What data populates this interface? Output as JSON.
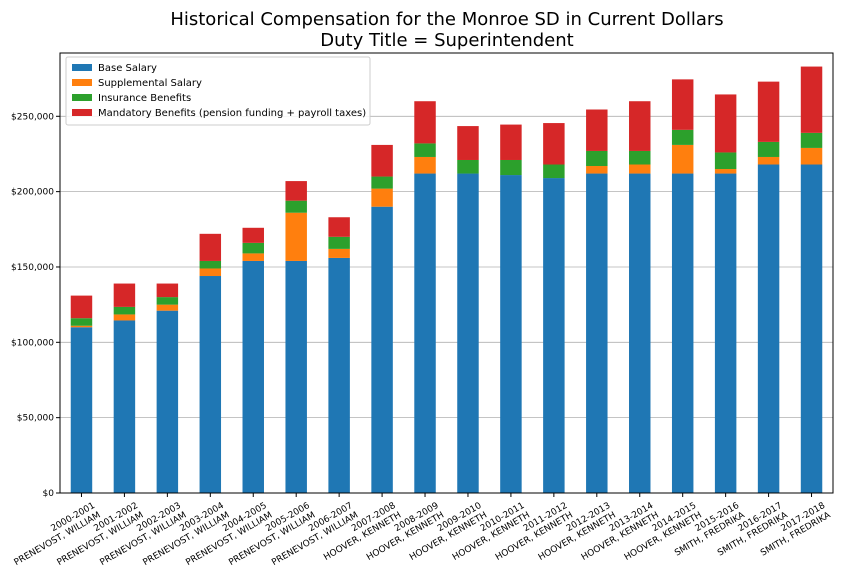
{
  "chart_data": {
    "type": "bar",
    "stacked": true,
    "title": "Historical Compensation for the Monroe SD in Current Dollars",
    "subtitle": "Duty Title = Superintendent",
    "xlabel": "",
    "ylabel": "",
    "ylim": [
      0,
      292000
    ],
    "y_ticks": [
      0,
      50000,
      100000,
      150000,
      200000,
      250000
    ],
    "y_tick_labels": [
      "$0",
      "$50,000",
      "$100,000",
      "$150,000",
      "$200,000",
      "$250,000"
    ],
    "grid": "horizontal",
    "legend_position": "top-left",
    "categories": [
      [
        "2000-2001",
        "PRENEVOST, WILLIAM"
      ],
      [
        "2001-2002",
        "PRENEVOST, WILLIAM"
      ],
      [
        "2002-2003",
        "PRENEVOST, WILLIAM"
      ],
      [
        "2003-2004",
        "PRENEVOST, WILLIAM"
      ],
      [
        "2004-2005",
        "PRENEVOST, WILLIAM"
      ],
      [
        "2005-2006",
        "PRENEVOST, WILLIAM"
      ],
      [
        "2006-2007",
        "PRENEVOST, WILLIAM"
      ],
      [
        "2007-2008",
        "HOOVER, KENNETH"
      ],
      [
        "2008-2009",
        "HOOVER, KENNETH"
      ],
      [
        "2009-2010",
        "HOOVER, KENNETH"
      ],
      [
        "2010-2011",
        "HOOVER, KENNETH"
      ],
      [
        "2011-2012",
        "HOOVER, KENNETH"
      ],
      [
        "2012-2013",
        "HOOVER, KENNETH"
      ],
      [
        "2013-2014",
        "HOOVER, KENNETH"
      ],
      [
        "2014-2015",
        "HOOVER, KENNETH"
      ],
      [
        "2015-2016",
        "SMITH, FREDRIKA"
      ],
      [
        "2016-2017",
        "SMITH, FREDRIKA"
      ],
      [
        "2017-2018",
        "SMITH, FREDRIKA"
      ]
    ],
    "series": [
      {
        "name": "Base Salary",
        "color": "#1f77b4",
        "values": [
          110000,
          114500,
          121000,
          144000,
          154000,
          154000,
          156000,
          190000,
          212000,
          212000,
          211000,
          209000,
          212000,
          212000,
          212000,
          212000,
          218000,
          218000
        ]
      },
      {
        "name": "Supplemental Salary",
        "color": "#ff7f0e",
        "values": [
          1000,
          4000,
          4000,
          5000,
          5000,
          32000,
          6000,
          12000,
          11000,
          0,
          0,
          0,
          5000,
          6000,
          19000,
          3000,
          5000,
          11000
        ]
      },
      {
        "name": "Insurance Benefits",
        "color": "#2ca02c",
        "values": [
          5000,
          5000,
          5000,
          5000,
          7000,
          8000,
          8000,
          8000,
          9000,
          9000,
          10000,
          9000,
          10000,
          9000,
          10000,
          11000,
          10000,
          10000
        ]
      },
      {
        "name": "Mandatory Benefits (pension funding + payroll taxes)",
        "color": "#d62728",
        "values": [
          15000,
          15500,
          9000,
          18000,
          10000,
          13000,
          13000,
          21000,
          28000,
          22500,
          23500,
          27500,
          27500,
          33000,
          33500,
          38500,
          40000,
          44000
        ]
      }
    ]
  }
}
